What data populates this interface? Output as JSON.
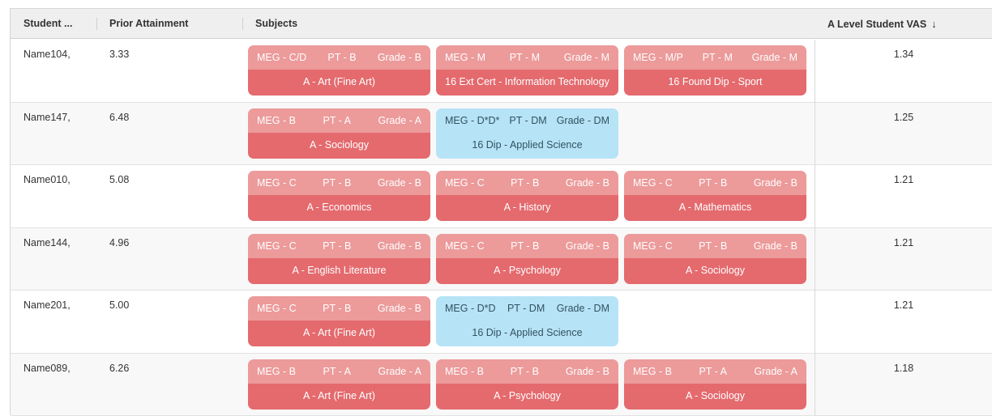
{
  "header": {
    "student_label": "Student ...",
    "prior_label": "Prior Attainment",
    "subjects_label": "Subjects",
    "vas_label": "A Level Student VAS",
    "vas_sort_icon": "arrow-down-icon"
  },
  "colors": {
    "below_target": "#e46a6e",
    "on_target": "#b7e3f7"
  },
  "rows": [
    {
      "student": "Name104,",
      "prior": "3.33",
      "vas": "1.34",
      "subjects": [
        {
          "meg": "MEG - C/D",
          "pt": "PT - B",
          "grade": "Grade - B",
          "name": "A - Art (Fine Art)",
          "status": "red"
        },
        {
          "meg": "MEG - M",
          "pt": "PT - M",
          "grade": "Grade - M",
          "name": "16 Ext Cert - Information Technology",
          "status": "red"
        },
        {
          "meg": "MEG - M/P",
          "pt": "PT - M",
          "grade": "Grade - M",
          "name": "16 Found Dip - Sport",
          "status": "red"
        }
      ]
    },
    {
      "student": "Name147,",
      "prior": "6.48",
      "vas": "1.25",
      "subjects": [
        {
          "meg": "MEG - B",
          "pt": "PT - A",
          "grade": "Grade - A",
          "name": "A - Sociology",
          "status": "red"
        },
        {
          "meg": "MEG - D*D*",
          "pt": "PT - DM",
          "grade": "Grade - DM",
          "name": "16 Dip - Applied Science",
          "status": "blue"
        }
      ]
    },
    {
      "student": "Name010,",
      "prior": "5.08",
      "vas": "1.21",
      "subjects": [
        {
          "meg": "MEG - C",
          "pt": "PT - B",
          "grade": "Grade - B",
          "name": "A - Economics",
          "status": "red"
        },
        {
          "meg": "MEG - C",
          "pt": "PT - B",
          "grade": "Grade - B",
          "name": "A - History",
          "status": "red"
        },
        {
          "meg": "MEG - C",
          "pt": "PT - B",
          "grade": "Grade - B",
          "name": "A - Mathematics",
          "status": "red"
        }
      ]
    },
    {
      "student": "Name144,",
      "prior": "4.96",
      "vas": "1.21",
      "subjects": [
        {
          "meg": "MEG - C",
          "pt": "PT - B",
          "grade": "Grade - B",
          "name": "A - English Literature",
          "status": "red"
        },
        {
          "meg": "MEG - C",
          "pt": "PT - B",
          "grade": "Grade - B",
          "name": "A - Psychology",
          "status": "red"
        },
        {
          "meg": "MEG - C",
          "pt": "PT - B",
          "grade": "Grade - B",
          "name": "A - Sociology",
          "status": "red"
        }
      ]
    },
    {
      "student": "Name201,",
      "prior": "5.00",
      "vas": "1.21",
      "subjects": [
        {
          "meg": "MEG - C",
          "pt": "PT - B",
          "grade": "Grade - B",
          "name": "A - Art (Fine Art)",
          "status": "red"
        },
        {
          "meg": "MEG - D*D",
          "pt": "PT - DM",
          "grade": "Grade - DM",
          "name": "16 Dip - Applied Science",
          "status": "blue"
        }
      ]
    },
    {
      "student": "Name089,",
      "prior": "6.26",
      "vas": "1.18",
      "subjects": [
        {
          "meg": "MEG - B",
          "pt": "PT - A",
          "grade": "Grade - A",
          "name": "A - Art (Fine Art)",
          "status": "red"
        },
        {
          "meg": "MEG - B",
          "pt": "PT - B",
          "grade": "Grade - B",
          "name": "A - Psychology",
          "status": "red"
        },
        {
          "meg": "MEG - B",
          "pt": "PT - A",
          "grade": "Grade - A",
          "name": "A - Sociology",
          "status": "red"
        }
      ]
    }
  ]
}
